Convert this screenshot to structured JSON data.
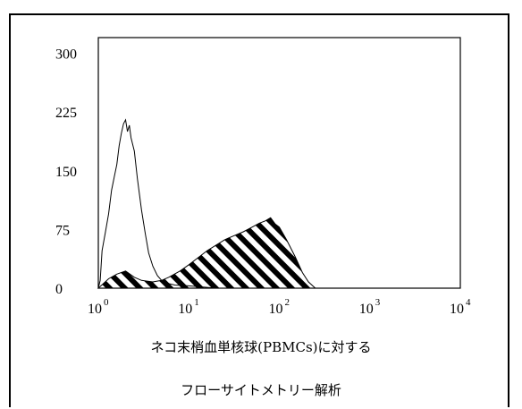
{
  "chart_data": {
    "type": "area",
    "x_scale": "log",
    "xlim": [
      1,
      10000
    ],
    "ylim": [
      0,
      320
    ],
    "y_ticks": [
      0,
      75,
      150,
      225,
      300
    ],
    "x_ticks": [
      {
        "base": "10",
        "exp": "0",
        "value": 1
      },
      {
        "base": "10",
        "exp": "1",
        "value": 10
      },
      {
        "base": "10",
        "exp": "2",
        "value": 100
      },
      {
        "base": "10",
        "exp": "3",
        "value": 1000
      },
      {
        "base": "10",
        "exp": "4",
        "value": 10000
      }
    ],
    "series": [
      {
        "style": "outline",
        "points": [
          [
            1.0,
            0
          ],
          [
            1.05,
            10
          ],
          [
            1.1,
            48
          ],
          [
            1.2,
            72
          ],
          [
            1.3,
            95
          ],
          [
            1.4,
            125
          ],
          [
            1.5,
            142
          ],
          [
            1.6,
            158
          ],
          [
            1.7,
            182
          ],
          [
            1.8,
            198
          ],
          [
            1.9,
            210
          ],
          [
            2.0,
            215
          ],
          [
            2.1,
            200
          ],
          [
            2.2,
            208
          ],
          [
            2.3,
            192
          ],
          [
            2.5,
            175
          ],
          [
            2.7,
            140
          ],
          [
            3.0,
            100
          ],
          [
            3.3,
            70
          ],
          [
            3.6,
            45
          ],
          [
            4.0,
            28
          ],
          [
            4.5,
            16
          ],
          [
            5.0,
            10
          ],
          [
            6.0,
            6
          ],
          [
            7.0,
            4
          ],
          [
            10,
            3
          ],
          [
            20,
            0
          ]
        ]
      },
      {
        "style": "hatched",
        "points": [
          [
            1.0,
            0
          ],
          [
            1.3,
            12
          ],
          [
            1.6,
            18
          ],
          [
            2.0,
            22
          ],
          [
            2.5,
            14
          ],
          [
            3.0,
            10
          ],
          [
            4.0,
            8
          ],
          [
            5.0,
            10
          ],
          [
            6.0,
            14
          ],
          [
            8.0,
            22
          ],
          [
            10,
            30
          ],
          [
            13,
            40
          ],
          [
            16,
            48
          ],
          [
            20,
            55
          ],
          [
            25,
            62
          ],
          [
            30,
            66
          ],
          [
            40,
            72
          ],
          [
            50,
            78
          ],
          [
            60,
            83
          ],
          [
            70,
            86
          ],
          [
            80,
            90
          ],
          [
            90,
            82
          ],
          [
            100,
            78
          ],
          [
            120,
            62
          ],
          [
            150,
            40
          ],
          [
            180,
            20
          ],
          [
            210,
            8
          ],
          [
            250,
            0
          ]
        ]
      }
    ]
  },
  "caption": {
    "line1": "ネコ末梢血単核球(PBMCs)に対する",
    "line2": "フローサイトメトリー解析"
  }
}
